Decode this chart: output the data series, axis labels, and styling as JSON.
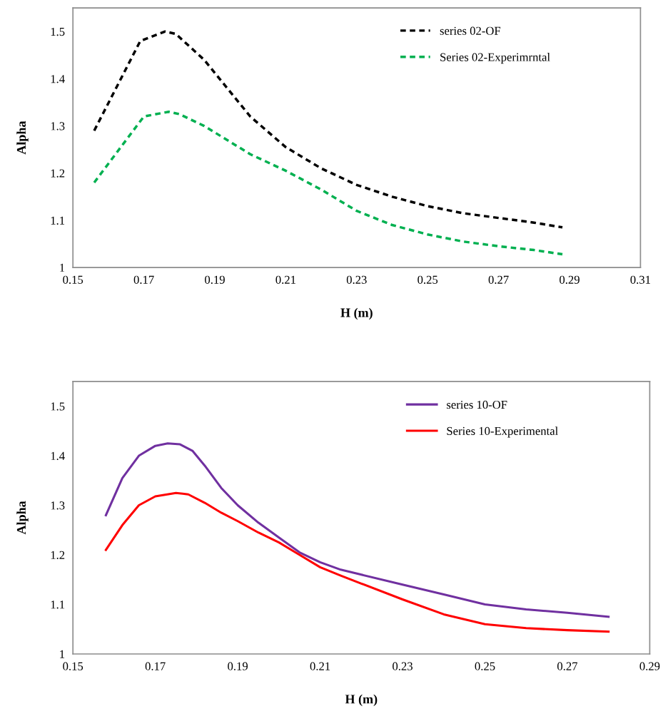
{
  "chart_data": [
    {
      "type": "line",
      "xlabel": "H (m)",
      "ylabel": "Alpha",
      "xlim": [
        0.15,
        0.31
      ],
      "xticks": [
        {
          "value": 0.15,
          "label": "0.15"
        },
        {
          "value": 0.17,
          "label": "0.17"
        },
        {
          "value": 0.19,
          "label": "0.19"
        },
        {
          "value": 0.21,
          "label": "0.21"
        },
        {
          "value": 0.23,
          "label": "0.23"
        },
        {
          "value": 0.25,
          "label": "0.25"
        },
        {
          "value": 0.27,
          "label": "0.27"
        },
        {
          "value": 0.29,
          "label": "0.29"
        },
        {
          "value": 0.31,
          "label": "0.31"
        }
      ],
      "ylim": [
        1,
        1.55
      ],
      "yticks": [
        1,
        1.1,
        1.2,
        1.3,
        1.4,
        1.5
      ],
      "legend": "top right",
      "line_style": "dashed",
      "grid": false,
      "series": [
        {
          "name": "series 02-OF",
          "color": "#000000",
          "x": [
            0.156,
            0.169,
            0.176,
            0.179,
            0.187,
            0.2,
            0.21,
            0.22,
            0.23,
            0.24,
            0.25,
            0.26,
            0.27,
            0.28,
            0.288
          ],
          "values": [
            1.29,
            1.48,
            1.5,
            1.495,
            1.44,
            1.32,
            1.255,
            1.21,
            1.175,
            1.15,
            1.13,
            1.115,
            1.105,
            1.095,
            1.085
          ]
        },
        {
          "name": "Series 02-Experimrntal",
          "color": "#00b050",
          "x": [
            0.156,
            0.17,
            0.177,
            0.18,
            0.187,
            0.2,
            0.21,
            0.22,
            0.23,
            0.24,
            0.25,
            0.26,
            0.27,
            0.28,
            0.288
          ],
          "values": [
            1.18,
            1.32,
            1.33,
            1.325,
            1.3,
            1.24,
            1.205,
            1.165,
            1.12,
            1.09,
            1.07,
            1.055,
            1.045,
            1.037,
            1.028
          ]
        }
      ]
    },
    {
      "type": "line",
      "xlabel": "H (m)",
      "ylabel": "Alpha",
      "xlim": [
        0.15,
        0.29
      ],
      "xticks": [
        {
          "value": 0.15,
          "label": "0.15"
        },
        {
          "value": 0.17,
          "label": "0.17"
        },
        {
          "value": 0.19,
          "label": "0.19"
        },
        {
          "value": 0.21,
          "label": "0.21"
        },
        {
          "value": 0.23,
          "label": "0.23"
        },
        {
          "value": 0.25,
          "label": "0.25"
        },
        {
          "value": 0.27,
          "label": "0.27"
        },
        {
          "value": 0.29,
          "label": "0.29"
        }
      ],
      "ylim": [
        1,
        1.55
      ],
      "yticks": [
        1,
        1.1,
        1.2,
        1.3,
        1.4,
        1.5
      ],
      "legend": "top right",
      "line_style": "solid",
      "grid": false,
      "series": [
        {
          "name": "series 10-OF",
          "color": "#7030a0",
          "x": [
            0.158,
            0.162,
            0.166,
            0.17,
            0.173,
            0.176,
            0.179,
            0.182,
            0.186,
            0.19,
            0.195,
            0.2,
            0.205,
            0.21,
            0.215,
            0.22,
            0.23,
            0.24,
            0.25,
            0.26,
            0.27,
            0.28
          ],
          "values": [
            1.28,
            1.355,
            1.4,
            1.42,
            1.425,
            1.423,
            1.41,
            1.38,
            1.335,
            1.3,
            1.265,
            1.235,
            1.205,
            1.185,
            1.17,
            1.16,
            1.14,
            1.12,
            1.1,
            1.09,
            1.083,
            1.075
          ]
        },
        {
          "name": "Series 10-Experimental",
          "color": "#ff0000",
          "x": [
            0.158,
            0.162,
            0.166,
            0.17,
            0.175,
            0.178,
            0.182,
            0.186,
            0.19,
            0.195,
            0.2,
            0.205,
            0.21,
            0.215,
            0.22,
            0.23,
            0.24,
            0.25,
            0.26,
            0.27,
            0.28
          ],
          "values": [
            1.21,
            1.26,
            1.3,
            1.318,
            1.325,
            1.322,
            1.305,
            1.285,
            1.268,
            1.245,
            1.225,
            1.2,
            1.175,
            1.158,
            1.142,
            1.11,
            1.08,
            1.06,
            1.052,
            1.048,
            1.045
          ]
        }
      ]
    }
  ]
}
